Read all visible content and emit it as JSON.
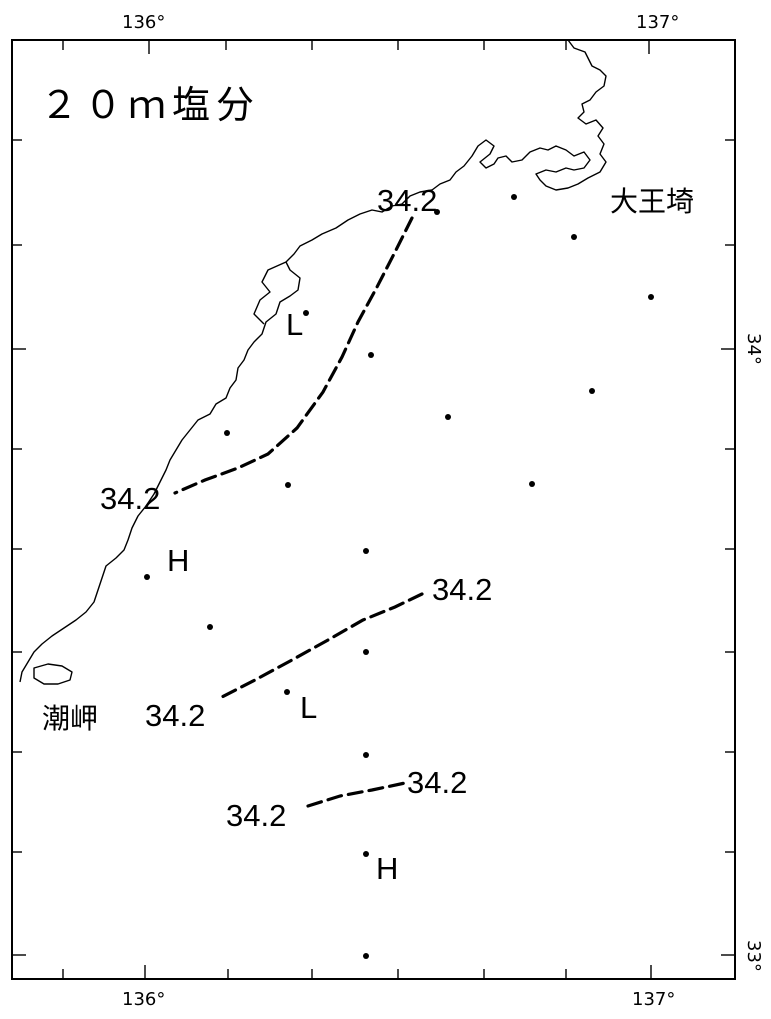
{
  "title": "２０ｍ塩分",
  "axes": {
    "lon_top_left": "136°",
    "lon_top_right": "137°",
    "lon_bottom_left": "136°",
    "lon_bottom_right": "137°",
    "lat_upper": "34°",
    "lat_lower": "33°"
  },
  "places": {
    "cape_daio": "大王埼",
    "cape_shio": "潮岬"
  },
  "isohaline_labels": [
    "34.2",
    "34.2",
    "34.2",
    "34.2",
    "34.2",
    "34.2"
  ],
  "pressure_marks": {
    "low_north": "L",
    "high_coast": "H",
    "low_mid": "L",
    "high_south": "H"
  }
}
